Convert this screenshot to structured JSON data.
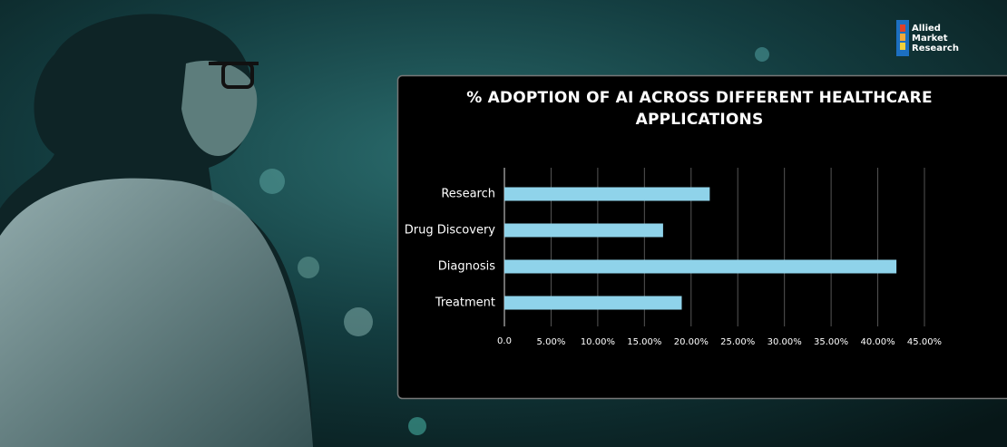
{
  "brand": {
    "lines": [
      "Allied",
      "Market",
      "Research"
    ]
  },
  "chart_data": {
    "type": "hbar",
    "title": "% ADOPTION OF AI ACROSS DIFFERENT HEALTHCARE APPLICATIONS",
    "categories": [
      "Research",
      "Drug Discovery",
      "Diagnosis",
      "Treatment"
    ],
    "values": [
      22,
      17,
      42,
      19
    ],
    "color": "#8fd3ea",
    "xlim": [
      0,
      45
    ],
    "xticks": [
      {
        "value": 0,
        "label": "0.0"
      },
      {
        "value": 5,
        "label": "5.00%"
      },
      {
        "value": 10,
        "label": "10.00%"
      },
      {
        "value": 15,
        "label": "15.00%"
      },
      {
        "value": 20,
        "label": "20.00%"
      },
      {
        "value": 25,
        "label": "25.00%"
      },
      {
        "value": 30,
        "label": "30.00%"
      },
      {
        "value": 35,
        "label": "35.00%"
      },
      {
        "value": 40,
        "label": "40.00%"
      },
      {
        "value": 45,
        "label": "45.00%"
      }
    ],
    "grid": true
  }
}
